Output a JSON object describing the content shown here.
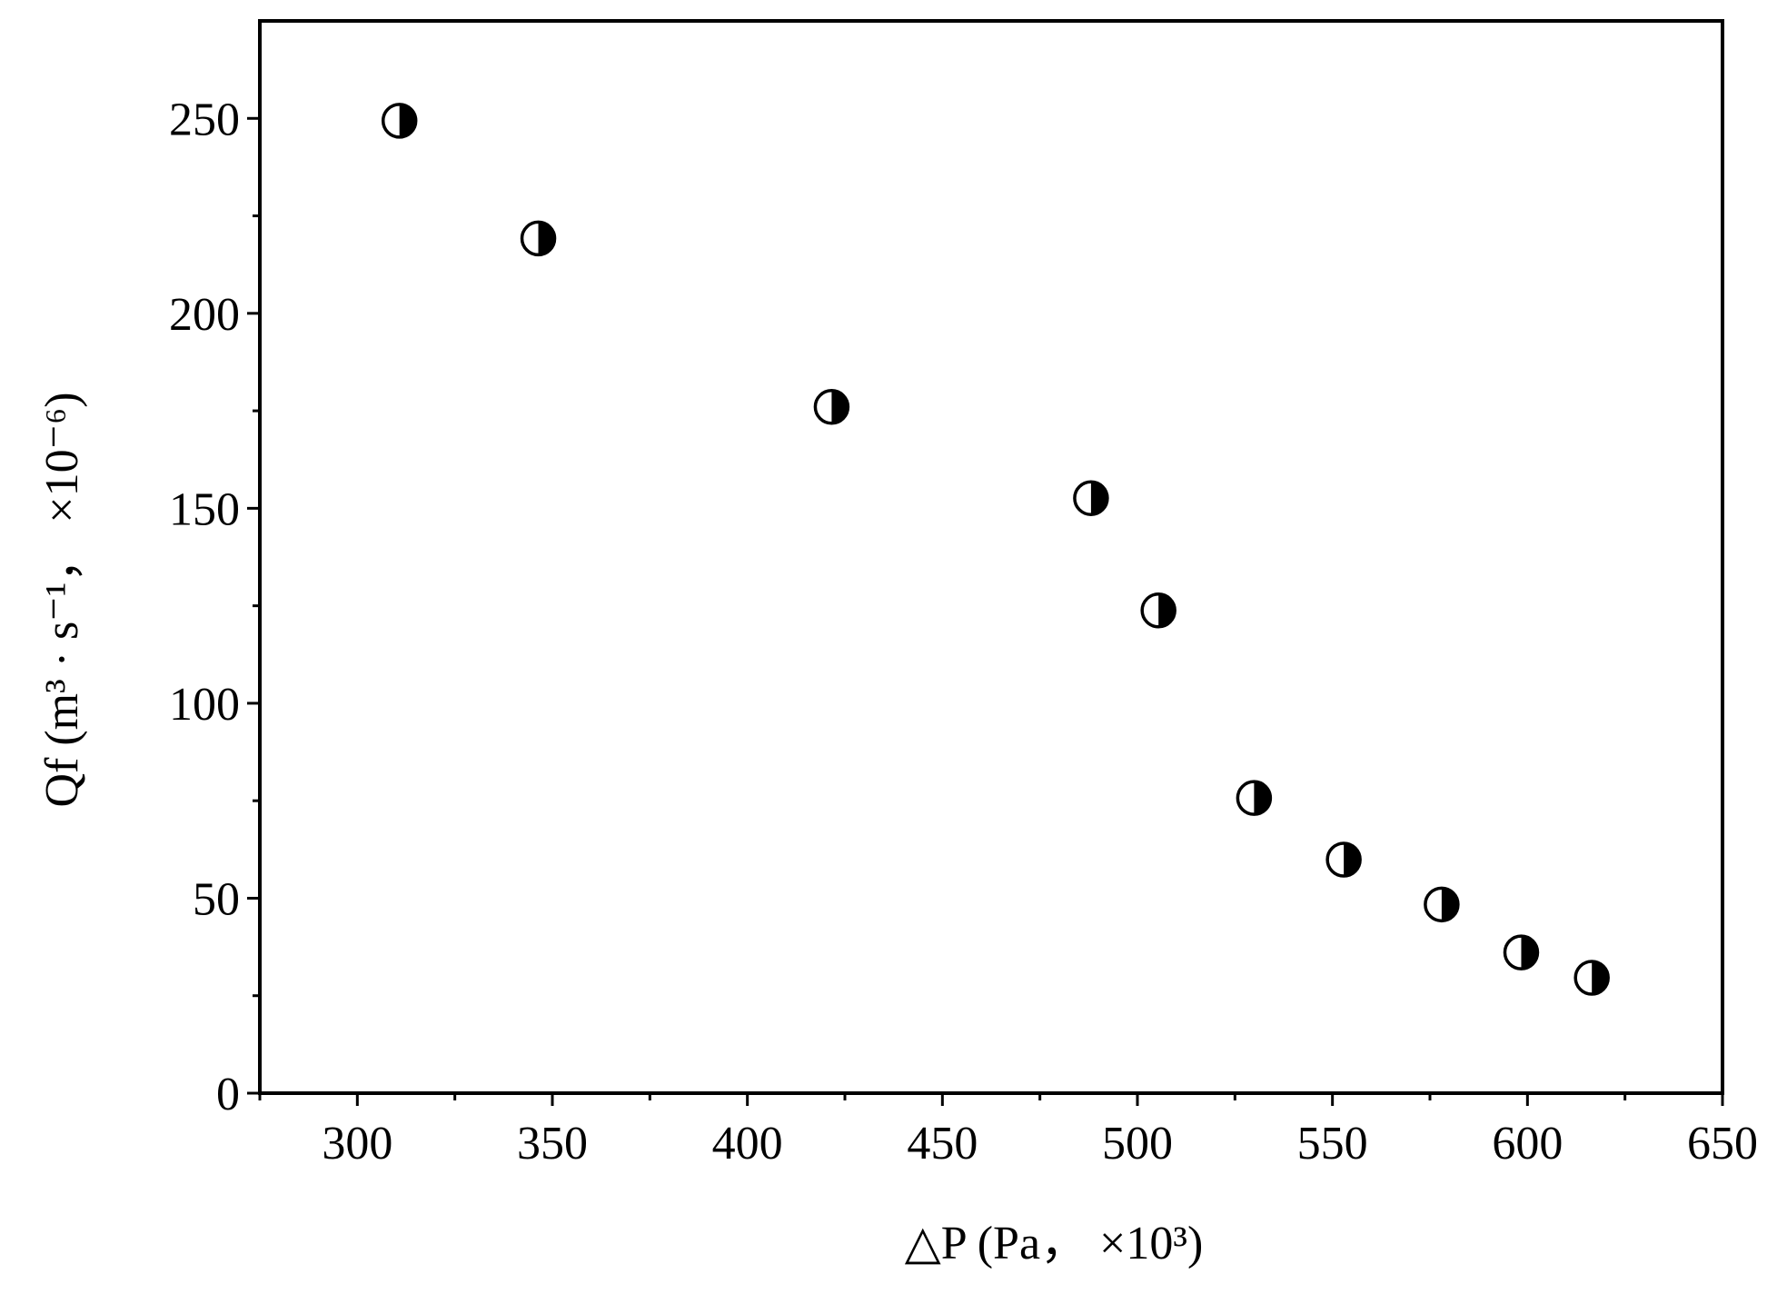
{
  "chart_data": {
    "type": "scatter",
    "x_label": "△P (Pa， ×10³)",
    "y_label": "Qf (m³ · s⁻¹， ×10⁻⁶)",
    "x": [
      310.8,
      346.4,
      421.6,
      488.1,
      505.4,
      529.9,
      552.9,
      578.0,
      598.4,
      616.5
    ],
    "values": [
      249.4,
      219.2,
      176.0,
      152.6,
      123.8,
      75.7,
      59.9,
      48.4,
      36.1,
      29.6
    ],
    "color": "#000000",
    "xlim": [
      275,
      650
    ],
    "xticks": [
      300,
      350,
      400,
      450,
      500,
      550,
      600,
      650
    ],
    "xminorticks": [
      275,
      325,
      375,
      425,
      475,
      525,
      575,
      625
    ],
    "ylim": [
      0,
      275
    ],
    "yticks": [
      0,
      50,
      100,
      150,
      200,
      250
    ],
    "yminorticks": [
      25,
      75,
      125,
      175,
      225
    ],
    "grid": false
  }
}
